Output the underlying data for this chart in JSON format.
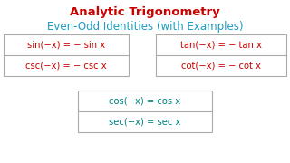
{
  "title": "Analytic Trigonometry",
  "subtitle": "Even-Odd Identities (with Examples)",
  "title_color": "#cc0000",
  "subtitle_color": "#1a9bbf",
  "box_odd_color": "#cc0000",
  "box_even_color": "#008080",
  "box_border": "#aaaaaa",
  "bg_color": "#ffffff",
  "left_box": [
    "sin(−x) = − sin x",
    "csc(−x) = − csc x"
  ],
  "right_box": [
    "tan(−x) = − tan x",
    "cot(−x) = − cot x"
  ],
  "center_box": [
    "cos(−x) = cos x",
    "sec(−x) = sec x"
  ]
}
